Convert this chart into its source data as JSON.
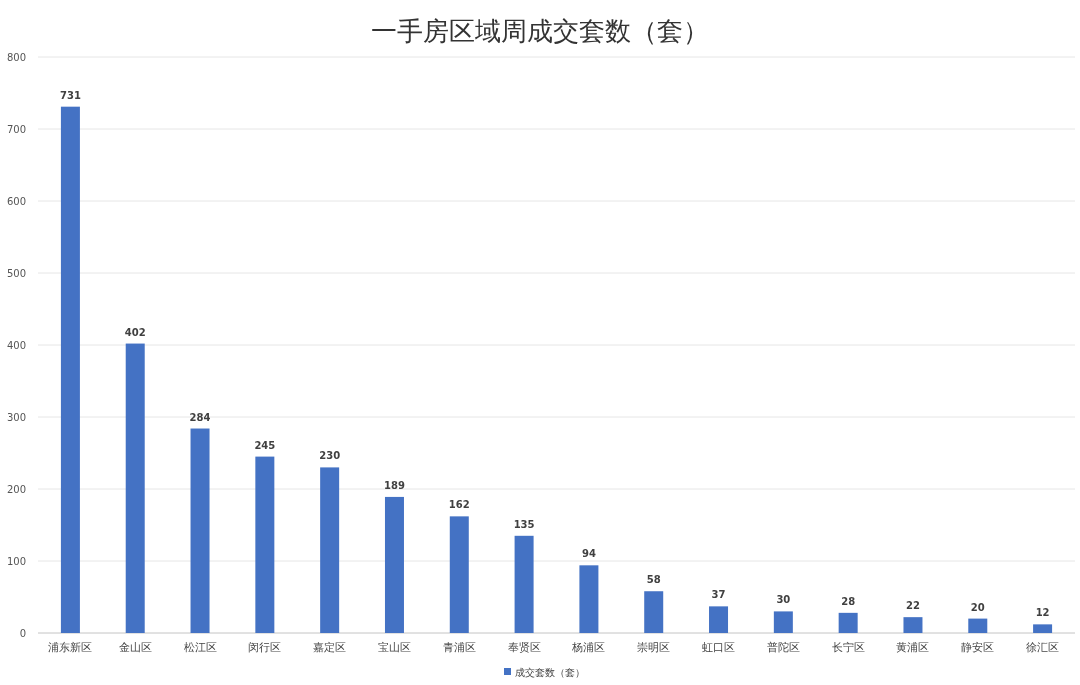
{
  "chart_data": {
    "type": "bar",
    "title": "一手房区域周成交套数（套）",
    "categories": [
      "浦东新区",
      "金山区",
      "松江区",
      "闵行区",
      "嘉定区",
      "宝山区",
      "青浦区",
      "奉贤区",
      "杨浦区",
      "崇明区",
      "虹口区",
      "普陀区",
      "长宁区",
      "黄浦区",
      "静安区",
      "徐汇区"
    ],
    "series": [
      {
        "name": "成交套数（套）",
        "color": "#4472c4",
        "values": [
          731,
          402,
          284,
          245,
          230,
          189,
          162,
          135,
          94,
          58,
          37,
          30,
          28,
          22,
          20,
          12
        ]
      }
    ],
    "ylim": [
      0,
      800
    ],
    "yticks": [
      0,
      100,
      200,
      300,
      400,
      500,
      600,
      700,
      800
    ],
    "grid": "y",
    "legend": "bottom",
    "data_labels": true
  }
}
